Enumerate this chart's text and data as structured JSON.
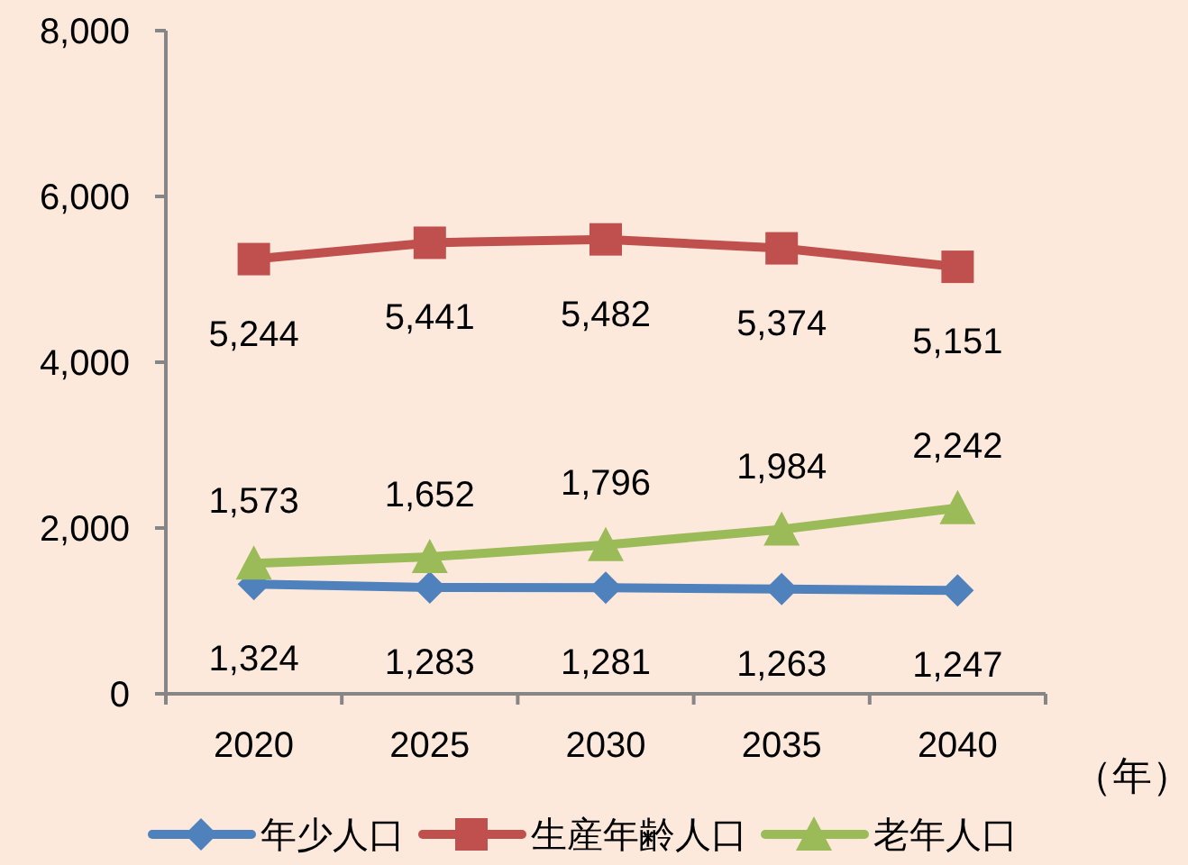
{
  "chart_data": {
    "type": "line",
    "xlabel": "（年）",
    "categories": [
      "2020",
      "2025",
      "2030",
      "2035",
      "2040"
    ],
    "ylim": [
      0,
      8000
    ],
    "yticks": [
      0,
      {
        "value": 2000,
        "label": "2,000"
      },
      {
        "value": 4000,
        "label": "4,000"
      },
      {
        "value": 6000,
        "label": "6,000"
      },
      {
        "value": 8000,
        "label": "8,000"
      }
    ],
    "grid": false,
    "legend": "bottom",
    "series": [
      {
        "name": "年少人口",
        "color": "#4f81bd",
        "marker": "diamond",
        "values": [
          1324,
          1283,
          1281,
          1263,
          1247
        ],
        "value_labels": [
          "1,324",
          "1,283",
          "1,281",
          "1,263",
          "1,247"
        ]
      },
      {
        "name": "生産年齢人口",
        "color": "#c0504d",
        "marker": "square",
        "values": [
          5244,
          5441,
          5482,
          5374,
          5151
        ],
        "value_labels": [
          "5,244",
          "5,441",
          "5,482",
          "5,374",
          "5,151"
        ]
      },
      {
        "name": "老年人口",
        "color": "#9bbb59",
        "marker": "triangle",
        "values": [
          1573,
          1652,
          1796,
          1984,
          2242
        ],
        "value_labels": [
          "1,573",
          "1,652",
          "1,796",
          "1,984",
          "2,242"
        ]
      }
    ]
  }
}
